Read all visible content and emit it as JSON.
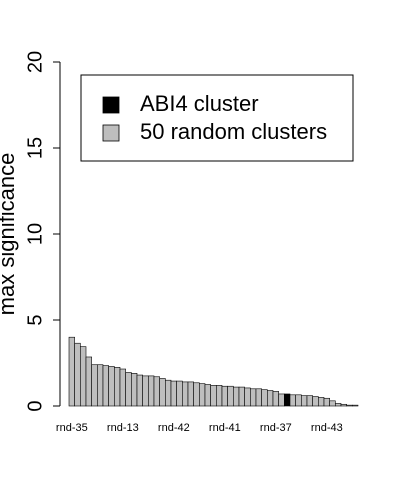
{
  "chart_data": {
    "type": "bar",
    "ylabel": "max significance",
    "categories": [
      "rnd-35",
      null,
      null,
      null,
      null,
      null,
      null,
      null,
      null,
      "rnd-13",
      null,
      null,
      null,
      null,
      null,
      null,
      null,
      null,
      "rnd-42",
      null,
      null,
      null,
      null,
      null,
      null,
      null,
      null,
      "rnd-41",
      null,
      null,
      null,
      null,
      null,
      null,
      null,
      null,
      "rnd-37",
      null,
      null,
      null,
      null,
      null,
      null,
      null,
      null,
      "rnd-43",
      null,
      null,
      null,
      null,
      null
    ],
    "values": [
      4.0,
      3.65,
      3.45,
      2.85,
      2.4,
      2.4,
      2.35,
      2.3,
      2.25,
      2.15,
      1.95,
      1.9,
      1.8,
      1.75,
      1.75,
      1.7,
      1.6,
      1.5,
      1.45,
      1.45,
      1.4,
      1.4,
      1.35,
      1.3,
      1.25,
      1.2,
      1.2,
      1.15,
      1.15,
      1.1,
      1.1,
      1.05,
      1.0,
      1.0,
      0.95,
      0.9,
      0.85,
      0.7,
      0.7,
      0.65,
      0.65,
      0.6,
      0.6,
      0.55,
      0.5,
      0.45,
      0.3,
      0.15,
      0.1,
      0.05,
      0.05
    ],
    "colors": [
      "#bebebe",
      "#bebebe",
      "#bebebe",
      "#bebebe",
      "#bebebe",
      "#bebebe",
      "#bebebe",
      "#bebebe",
      "#bebebe",
      "#bebebe",
      "#bebebe",
      "#bebebe",
      "#bebebe",
      "#bebebe",
      "#bebebe",
      "#bebebe",
      "#bebebe",
      "#bebebe",
      "#bebebe",
      "#bebebe",
      "#bebebe",
      "#bebebe",
      "#bebebe",
      "#bebebe",
      "#bebebe",
      "#bebebe",
      "#bebebe",
      "#bebebe",
      "#bebebe",
      "#bebebe",
      "#bebebe",
      "#bebebe",
      "#bebebe",
      "#bebebe",
      "#bebebe",
      "#bebebe",
      "#bebebe",
      "#bebebe",
      "#000000",
      "#bebebe",
      "#bebebe",
      "#bebebe",
      "#bebebe",
      "#bebebe",
      "#bebebe",
      "#bebebe",
      "#bebebe",
      "#bebebe",
      "#bebebe",
      "#bebebe",
      "#bebebe"
    ],
    "legend": [
      {
        "label": "ABI4 cluster",
        "color": "#000000"
      },
      {
        "label": "50 random clusters",
        "color": "#bebebe"
      }
    ],
    "ylim": [
      0,
      20
    ],
    "yticks": [
      0,
      5,
      10,
      15,
      20
    ]
  }
}
